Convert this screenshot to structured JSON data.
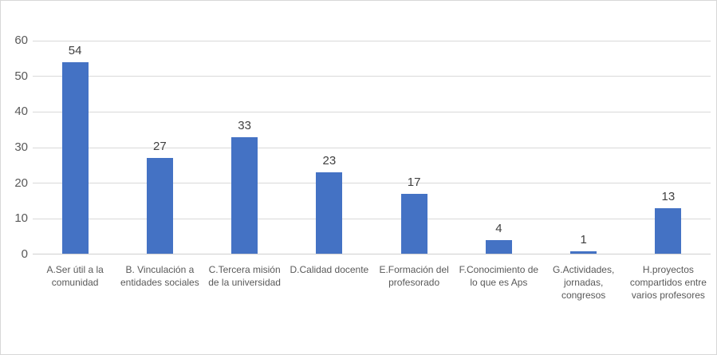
{
  "chart_data": {
    "type": "bar",
    "title": "",
    "xlabel": "",
    "ylabel": "",
    "categories": [
      "A.Ser útil a la comunidad",
      "B. Vinculación a entidades sociales",
      "C.Tercera misión de la universidad",
      "D.Calidad docente",
      "E.Formación del profesorado",
      "F.Conocimiento de lo que es Aps",
      "G.Actividades, jornadas, congresos",
      "H.proyectos compartidos entre varios profesores"
    ],
    "values": [
      54,
      27,
      33,
      23,
      17,
      4,
      1,
      13
    ],
    "data_labels": [
      54,
      27,
      33,
      23,
      17,
      4,
      1,
      13
    ],
    "ylim": [
      0,
      60
    ],
    "yticks": [
      0,
      10,
      20,
      30,
      40,
      50,
      60
    ],
    "grid": true,
    "legend": false,
    "colors": {
      "bar_fill": "#4472C4",
      "gridline": "#D9D9D9",
      "axis_line": "#D0D0D0",
      "axis_text": "#595959",
      "data_label_text": "#404040",
      "background": "#FFFFFF",
      "border": "#D7D7D7"
    }
  }
}
